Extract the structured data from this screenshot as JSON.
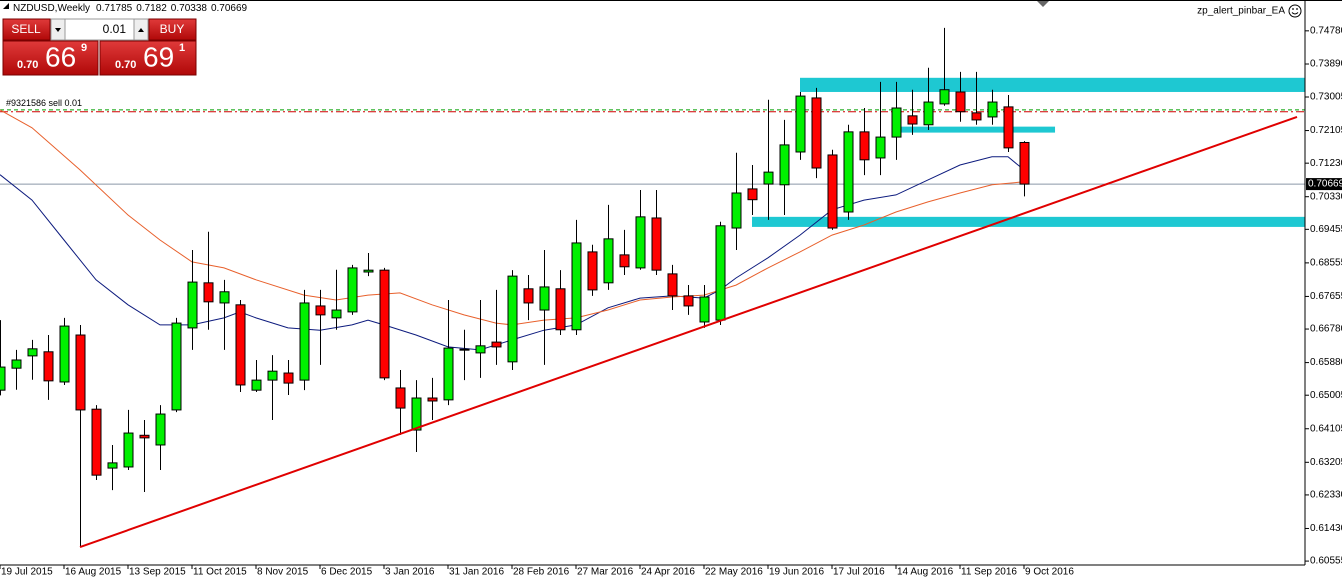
{
  "chart_data": {
    "type": "candlestick",
    "title": "NZDUSD,Weekly",
    "expert": "zp_alert_pinbar_EA",
    "trade_panel": {
      "sell": "SELL",
      "buy": "BUY",
      "lot": "0.01",
      "bid": [
        "0.70",
        "66",
        "9"
      ],
      "ask": [
        "0.70",
        "69",
        "1"
      ]
    },
    "categories": [
      "19 Jul 2015",
      null,
      null,
      null,
      "16 Aug 2015",
      null,
      null,
      null,
      "13 Sep 2015",
      null,
      null,
      null,
      "11 Oct 2015",
      null,
      null,
      null,
      "8 Nov 2015",
      null,
      null,
      null,
      "6 Dec 2015",
      null,
      null,
      null,
      "3 Jan 2016",
      null,
      null,
      null,
      "31 Jan 2016",
      null,
      null,
      null,
      "28 Feb 2016",
      null,
      null,
      null,
      "27 Mar 2016",
      null,
      null,
      null,
      "24 Apr 2016",
      null,
      null,
      null,
      "22 May 2016",
      null,
      null,
      null,
      "19 Jun 2016",
      null,
      null,
      null,
      "17 Jul 2016",
      null,
      null,
      null,
      "14 Aug 2016",
      null,
      null,
      null,
      "11 Sep 2016",
      null,
      null,
      null,
      "9 Oct 2016"
    ],
    "open": [
      0.6514,
      0.6573,
      0.6606,
      0.6617,
      0.6536,
      0.6662,
      0.6463,
      0.6305,
      0.6308,
      0.6393,
      0.6367,
      0.6461,
      0.6681,
      0.6802,
      0.6748,
      0.6743,
      0.6514,
      0.6541,
      0.656,
      0.6541,
      0.674,
      0.6708,
      0.6724,
      0.6831,
      0.6836,
      0.652,
      0.6407,
      0.6493,
      0.6488,
      0.6624,
      0.6614,
      0.6643,
      0.659,
      0.6786,
      0.6729,
      0.6786,
      0.6676,
      0.6885,
      0.6802,
      0.6877,
      0.6842,
      0.6976,
      0.6826,
      0.6767,
      0.6697,
      0.6702,
      0.6949,
      0.7054,
      0.7067,
      0.7065,
      0.7153,
      0.7298,
      0.7145,
      0.6992,
      0.7207,
      0.7137,
      0.7193,
      0.725,
      0.7226,
      0.7282,
      0.7314,
      0.7258,
      0.7247,
      0.7274,
      0.71785
    ],
    "high": [
      0.6702,
      0.6622,
      0.6649,
      0.6662,
      0.6708,
      0.6689,
      0.6474,
      0.6367,
      0.6461,
      0.6434,
      0.6474,
      0.6708,
      0.689,
      0.6939,
      0.681,
      0.6756,
      0.6595,
      0.6608,
      0.6595,
      0.6783,
      0.6783,
      0.6837,
      0.685,
      0.6882,
      0.6842,
      0.6568,
      0.6541,
      0.6547,
      0.6756,
      0.6676,
      0.6756,
      0.6783,
      0.6836,
      0.6823,
      0.689,
      0.6836,
      0.6971,
      0.6904,
      0.7011,
      0.6944,
      0.7051,
      0.7051,
      0.685,
      0.6796,
      0.6796,
      0.6966,
      0.7151,
      0.7118,
      0.7293,
      0.7239,
      0.7314,
      0.7325,
      0.7159,
      0.7226,
      0.7271,
      0.7341,
      0.7341,
      0.732,
      0.7379,
      0.7486,
      0.7368,
      0.7368,
      0.732,
      0.7306,
      0.7182
    ],
    "low": [
      0.65,
      0.6515,
      0.6542,
      0.6488,
      0.6528,
      0.6093,
      0.6273,
      0.6246,
      0.63,
      0.6241,
      0.63,
      0.6455,
      0.6622,
      0.6676,
      0.6622,
      0.6509,
      0.6509,
      0.6434,
      0.6501,
      0.6514,
      0.6582,
      0.6676,
      0.6716,
      0.682,
      0.6541,
      0.6394,
      0.6348,
      0.6434,
      0.6474,
      0.6541,
      0.6547,
      0.6582,
      0.6568,
      0.6702,
      0.6582,
      0.6662,
      0.6662,
      0.6767,
      0.6783,
      0.6823,
      0.6837,
      0.6823,
      0.6729,
      0.6716,
      0.6681,
      0.6689,
      0.689,
      0.6984,
      0.6971,
      0.6984,
      0.7132,
      0.7083,
      0.6944,
      0.6971,
      0.7091,
      0.7091,
      0.7132,
      0.7199,
      0.7212,
      0.7277,
      0.7234,
      0.7226,
      0.7226,
      0.7153,
      0.70338
    ],
    "close": [
      0.6576,
      0.6595,
      0.6625,
      0.6539,
      0.6686,
      0.6461,
      0.6286,
      0.6319,
      0.6399,
      0.6386,
      0.645,
      0.6694,
      0.6804,
      0.6751,
      0.6778,
      0.6528,
      0.6541,
      0.6565,
      0.6533,
      0.6748,
      0.6716,
      0.6729,
      0.6842,
      0.6836,
      0.6547,
      0.6466,
      0.6493,
      0.6485,
      0.6627,
      0.6622,
      0.6633,
      0.663,
      0.682,
      0.6748,
      0.6791,
      0.6676,
      0.6909,
      0.6783,
      0.692,
      0.6845,
      0.6979,
      0.6836,
      0.6767,
      0.674,
      0.6764,
      0.6955,
      0.7043,
      0.7025,
      0.7099,
      0.7172,
      0.7303,
      0.711,
      0.6949,
      0.7207,
      0.7132,
      0.7193,
      0.7271,
      0.7228,
      0.7287,
      0.732,
      0.7261,
      0.7239,
      0.7287,
      0.7164,
      0.70669
    ],
    "up_color": "#00f000",
    "down_color": "#ff0000",
    "overlays": [
      {
        "color": "#0d1b7e",
        "x": [
          0,
          2,
          4,
          6,
          8,
          10,
          12,
          14,
          15,
          16,
          18,
          20,
          22,
          23,
          24,
          26,
          28,
          30,
          32,
          34,
          36,
          38,
          40,
          42,
          44,
          45,
          46,
          48,
          50,
          52,
          54,
          56,
          58,
          60,
          62,
          63,
          64
        ],
        "values": [
          0.7092,
          0.7024,
          0.6917,
          0.681,
          0.6743,
          0.6689,
          0.6689,
          0.6708,
          0.6724,
          0.6708,
          0.6681,
          0.6675,
          0.6689,
          0.6702,
          0.6689,
          0.6662,
          0.663,
          0.6622,
          0.6649,
          0.6675,
          0.6689,
          0.6735,
          0.6761,
          0.6767,
          0.6761,
          0.6783,
          0.6815,
          0.6869,
          0.693,
          0.6998,
          0.7024,
          0.7038,
          0.7078,
          0.7118,
          0.714,
          0.714,
          0.7105
        ]
      },
      {
        "color": "#e8602c",
        "x": [
          0,
          2,
          5,
          8,
          10,
          12,
          14,
          16,
          19,
          21,
          23,
          25,
          27,
          29,
          31,
          32,
          34,
          36,
          38,
          40,
          42,
          44,
          46,
          48,
          50,
          52,
          54,
          56,
          58,
          60,
          62,
          64
        ],
        "values": [
          0.7266,
          0.7218,
          0.7105,
          0.6984,
          0.6917,
          0.6858,
          0.6842,
          0.681,
          0.6769,
          0.6756,
          0.6769,
          0.6775,
          0.6743,
          0.6716,
          0.6694,
          0.6689,
          0.6702,
          0.6708,
          0.6729,
          0.6756,
          0.6764,
          0.6769,
          0.6796,
          0.6842,
          0.6885,
          0.693,
          0.6957,
          0.6992,
          0.7019,
          0.7043,
          0.7065,
          0.7073
        ]
      }
    ],
    "trendline": {
      "color": "#e00000",
      "x": [
        5,
        81.06
      ],
      "values": [
        0.6093,
        0.7247
      ]
    },
    "zones": [
      {
        "color": "#1ec8d2",
        "x": [
          50,
          81.56
        ],
        "values": [
          0.7352,
          0.7314
        ]
      },
      {
        "color": "#1ec8d2",
        "x": [
          56.25,
          65.94
        ],
        "values": [
          0.7221,
          0.7205
        ]
      },
      {
        "color": "#1ec8d2",
        "x": [
          47,
          81.56
        ],
        "values": [
          0.6979,
          0.6952
        ]
      }
    ],
    "order_label": "#9321586 sell 0.01",
    "order_lines": [
      {
        "price": 0.7266,
        "color": "#00a000"
      },
      {
        "price": 0.7261,
        "color": "#d00000"
      }
    ],
    "current_price": 0.70669,
    "ylim": [
      0.6045,
      0.755
    ],
    "yticks": [
      {
        "value": 0.7478,
        "label": "0.74780"
      },
      {
        "value": 0.7389,
        "label": "0.73890"
      },
      0.73005,
      0.72105,
      {
        "value": 0.7123,
        "label": "0.71230"
      },
      {
        "value": 0.7033,
        "label": "0.70330"
      },
      0.69455,
      0.68555,
      0.67655,
      {
        "value": 0.6678,
        "label": "0.66780"
      },
      {
        "value": 0.6588,
        "label": "0.65880"
      },
      0.65005,
      0.64105,
      0.63205,
      {
        "value": 0.6233,
        "label": "0.62330"
      },
      {
        "value": 0.6143,
        "label": "0.61430"
      },
      0.60555
    ]
  }
}
